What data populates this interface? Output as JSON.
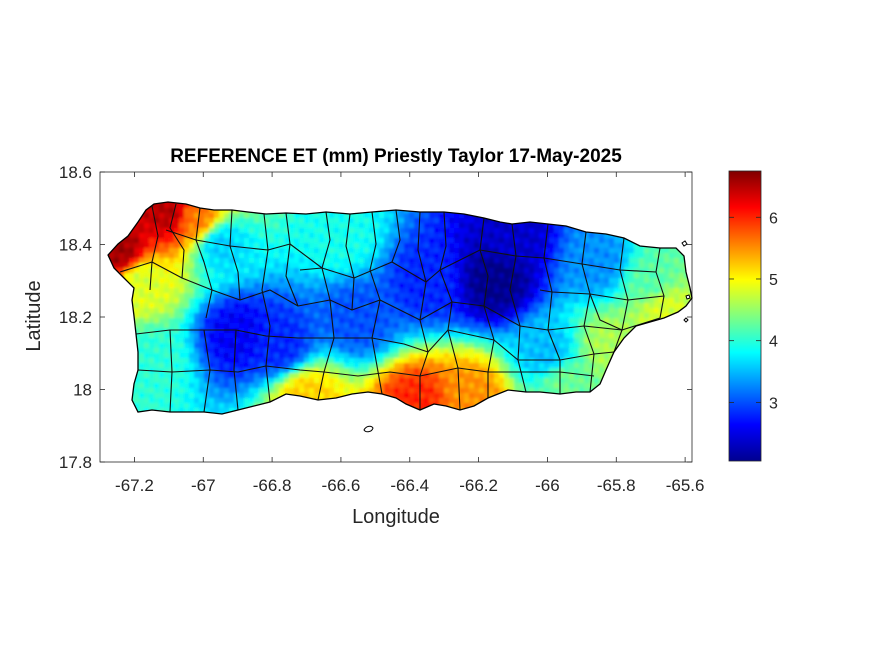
{
  "chart_data": {
    "type": "heatmap",
    "title": "REFERENCE ET (mm) Priestly Taylor 17-May-2025",
    "xlabel": "Longitude",
    "ylabel": "Latitude",
    "xlim": [
      -67.3,
      -65.58
    ],
    "ylim": [
      17.8,
      18.6
    ],
    "xticks": [
      -67.2,
      -67,
      -66.8,
      -66.6,
      -66.4,
      -66.2,
      -66,
      -65.8,
      -65.6
    ],
    "xtick_labels": [
      "-67.2",
      "-67",
      "-66.8",
      "-66.6",
      "-66.4",
      "-66.2",
      "-66",
      "-65.8",
      "-65.6"
    ],
    "yticks": [
      17.8,
      18,
      18.2,
      18.4,
      18.6
    ],
    "ytick_labels": [
      "17.8",
      "18",
      "18.2",
      "18.4",
      "18.6"
    ],
    "colormap": "jet",
    "colorbar": {
      "clim": [
        2.05,
        6.75
      ],
      "ticks": [
        3,
        4,
        5,
        6
      ],
      "tick_labels": [
        "3",
        "4",
        "5",
        "6"
      ]
    },
    "grid": false,
    "field_anchors": [
      {
        "lon": -67.24,
        "lat": 18.38,
        "value": 6.6
      },
      {
        "lon": -67.1,
        "lat": 18.49,
        "value": 6.5
      },
      {
        "lon": -67.02,
        "lat": 18.47,
        "value": 5.6
      },
      {
        "lon": -67.18,
        "lat": 18.3,
        "value": 4.8
      },
      {
        "lon": -67.15,
        "lat": 18.08,
        "value": 4.0
      },
      {
        "lon": -66.95,
        "lat": 18.4,
        "value": 3.6
      },
      {
        "lon": -66.9,
        "lat": 18.15,
        "value": 2.6
      },
      {
        "lon": -66.78,
        "lat": 18.12,
        "value": 2.8
      },
      {
        "lon": -66.7,
        "lat": 17.98,
        "value": 5.2
      },
      {
        "lon": -66.6,
        "lat": 18.42,
        "value": 3.9
      },
      {
        "lon": -66.55,
        "lat": 18.2,
        "value": 3.0
      },
      {
        "lon": -66.38,
        "lat": 17.96,
        "value": 6.0
      },
      {
        "lon": -66.35,
        "lat": 18.3,
        "value": 2.8
      },
      {
        "lon": -66.22,
        "lat": 17.98,
        "value": 5.5
      },
      {
        "lon": -66.15,
        "lat": 18.3,
        "value": 2.1
      },
      {
        "lon": -66.1,
        "lat": 18.42,
        "value": 2.4
      },
      {
        "lon": -66.0,
        "lat": 18.1,
        "value": 3.5
      },
      {
        "lon": -65.95,
        "lat": 18.02,
        "value": 4.3
      },
      {
        "lon": -65.85,
        "lat": 18.35,
        "value": 3.3
      },
      {
        "lon": -65.82,
        "lat": 18.12,
        "value": 4.6
      },
      {
        "lon": -65.7,
        "lat": 18.3,
        "value": 4.2
      },
      {
        "lon": -65.66,
        "lat": 18.22,
        "value": 4.8
      }
    ]
  }
}
